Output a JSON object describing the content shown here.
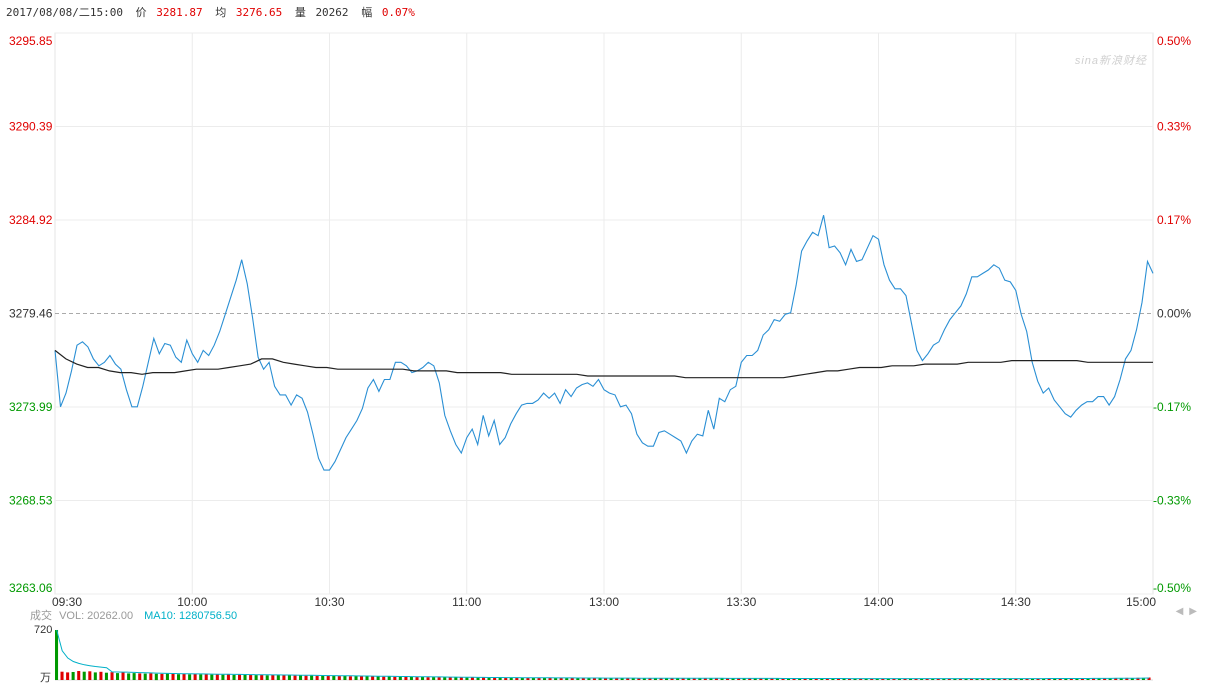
{
  "header": {
    "datetime": "2017/08/08/二15:00",
    "price_label": "价",
    "price": "3281.87",
    "avg_label": "均",
    "avg": "3276.65",
    "vol_label": "量",
    "vol": "20262",
    "chg_label": "幅",
    "chg": "0.07%"
  },
  "watermark": "sina新浪财经",
  "colors": {
    "up": "#e00000",
    "down": "#009900",
    "line": "#2a8fd4",
    "avg": "#222222",
    "ma": "#00b0c8"
  },
  "volume_panel": {
    "title": "成交",
    "vol_text": "VOL: 20262.00",
    "ma_text": "MA10: 1280756.50",
    "max_label": "720",
    "unit_label": "万"
  },
  "chart_data": {
    "type": "line",
    "title": "",
    "prev_close": 3279.46,
    "ylim": [
      3263.06,
      3295.85
    ],
    "y_ticks_left": [
      "3295.85",
      "3290.39",
      "3284.92",
      "3279.46",
      "3273.99",
      "3268.53",
      "3263.06"
    ],
    "y_ticks_right": [
      "0.50%",
      "0.33%",
      "0.17%",
      "0.00%",
      "-0.17%",
      "-0.33%",
      "-0.50%"
    ],
    "x_labels": [
      "09:30",
      "10:00",
      "10:30",
      "11:00",
      "13:00",
      "13:30",
      "14:00",
      "14:30",
      "15:00"
    ],
    "series": [
      {
        "type": "price",
        "values": [
          3277.3,
          3274.0,
          3274.8,
          3276.1,
          3277.6,
          3277.8,
          3277.5,
          3276.8,
          3276.4,
          3276.6,
          3277.0,
          3276.5,
          3276.2,
          3275.0,
          3274.0,
          3274.0,
          3275.2,
          3276.6,
          3278.0,
          3277.1,
          3277.7,
          3277.6,
          3276.9,
          3276.6,
          3277.9,
          3277.1,
          3276.6,
          3277.3,
          3277.0,
          3277.6,
          3278.4,
          3279.4,
          3280.4,
          3281.4,
          3282.6,
          3281.2,
          3279.2,
          3276.9,
          3276.2,
          3276.6,
          3275.2,
          3274.7,
          3274.7,
          3274.1,
          3274.7,
          3274.5,
          3273.7,
          3272.4,
          3271.0,
          3270.3,
          3270.3,
          3270.8,
          3271.5,
          3272.2,
          3272.7,
          3273.2,
          3273.9,
          3275.1,
          3275.6,
          3274.9,
          3275.6,
          3275.6,
          3276.6,
          3276.6,
          3276.4,
          3276.0,
          3276.1,
          3276.3,
          3276.6,
          3276.4,
          3275.4,
          3273.5,
          3272.6,
          3271.8,
          3271.3,
          3272.2,
          3272.7,
          3271.8,
          3273.5,
          3272.3,
          3273.2,
          3271.8,
          3272.2,
          3273.0,
          3273.6,
          3274.1,
          3274.2,
          3274.2,
          3274.4,
          3274.8,
          3274.5,
          3274.8,
          3274.2,
          3275.0,
          3274.6,
          3275.1,
          3275.3,
          3275.4,
          3275.2,
          3275.6,
          3275.0,
          3274.8,
          3274.7,
          3274.0,
          3274.1,
          3273.6,
          3272.4,
          3271.9,
          3271.7,
          3271.7,
          3272.5,
          3272.6,
          3272.4,
          3272.2,
          3272.0,
          3271.3,
          3272.0,
          3272.4,
          3272.3,
          3273.8,
          3272.7,
          3274.5,
          3274.3,
          3275.0,
          3275.2,
          3276.6,
          3277.0,
          3277.0,
          3277.3,
          3278.2,
          3278.5,
          3279.1,
          3279.0,
          3279.4,
          3279.5,
          3281.1,
          3283.1,
          3283.7,
          3284.2,
          3284.0,
          3285.2,
          3283.3,
          3283.4,
          3283.0,
          3282.3,
          3283.2,
          3282.5,
          3282.6,
          3283.3,
          3284.0,
          3283.8,
          3282.3,
          3281.4,
          3280.9,
          3280.9,
          3280.5,
          3278.9,
          3277.3,
          3276.7,
          3277.1,
          3277.6,
          3277.8,
          3278.5,
          3279.1,
          3279.5,
          3279.9,
          3280.6,
          3281.6,
          3281.6,
          3281.8,
          3282.0,
          3282.3,
          3282.1,
          3281.4,
          3281.3,
          3280.8,
          3279.4,
          3278.4,
          3276.6,
          3275.5,
          3274.8,
          3275.1,
          3274.4,
          3274.0,
          3273.6,
          3273.4,
          3273.8,
          3274.1,
          3274.3,
          3274.3,
          3274.6,
          3274.6,
          3274.1,
          3274.6,
          3275.6,
          3276.8,
          3277.3,
          3278.5,
          3280.1,
          3282.5,
          3281.8
        ]
      },
      {
        "type": "average",
        "values": [
          3277.3,
          3276.8,
          3276.5,
          3276.3,
          3276.3,
          3276.1,
          3276.0,
          3276.0,
          3275.9,
          3276.0,
          3276.0,
          3276.0,
          3276.1,
          3276.2,
          3276.2,
          3276.2,
          3276.3,
          3276.4,
          3276.5,
          3276.8,
          3276.8,
          3276.6,
          3276.5,
          3276.4,
          3276.3,
          3276.3,
          3276.2,
          3276.2,
          3276.2,
          3276.2,
          3276.2,
          3276.2,
          3276.2,
          3276.1,
          3276.1,
          3276.1,
          3276.1,
          3276.0,
          3276.0,
          3276.0,
          3276.0,
          3276.0,
          3275.9,
          3275.9,
          3275.9,
          3275.9,
          3275.9,
          3275.9,
          3275.9,
          3275.8,
          3275.8,
          3275.8,
          3275.8,
          3275.8,
          3275.8,
          3275.8,
          3275.8,
          3275.8,
          3275.7,
          3275.7,
          3275.7,
          3275.7,
          3275.7,
          3275.7,
          3275.7,
          3275.7,
          3275.7,
          3275.7,
          3275.8,
          3275.9,
          3276.0,
          3276.1,
          3276.1,
          3276.2,
          3276.3,
          3276.3,
          3276.3,
          3276.4,
          3276.4,
          3276.4,
          3276.5,
          3276.5,
          3276.5,
          3276.5,
          3276.6,
          3276.6,
          3276.6,
          3276.6,
          3276.7,
          3276.7,
          3276.7,
          3276.7,
          3276.7,
          3276.7,
          3276.7,
          3276.6,
          3276.6,
          3276.6,
          3276.6,
          3276.6,
          3276.6,
          3276.6
        ]
      }
    ],
    "volume_bars": [
      {
        "v": 720,
        "up": false
      },
      {
        "v": 120,
        "up": true
      },
      {
        "v": 110,
        "up": true
      },
      {
        "v": 115,
        "up": false
      },
      {
        "v": 130,
        "up": true
      },
      {
        "v": 120,
        "up": false
      },
      {
        "v": 125,
        "up": true
      },
      {
        "v": 110,
        "up": false
      },
      {
        "v": 118,
        "up": true
      },
      {
        "v": 105,
        "up": false
      },
      {
        "v": 112,
        "up": true
      },
      {
        "v": 100,
        "up": false
      },
      {
        "v": 108,
        "up": true
      },
      {
        "v": 95,
        "up": false
      },
      {
        "v": 100,
        "up": false
      },
      {
        "v": 95,
        "up": true
      },
      {
        "v": 92,
        "up": false
      },
      {
        "v": 96,
        "up": true
      },
      {
        "v": 90,
        "up": false
      },
      {
        "v": 88,
        "up": true
      },
      {
        "v": 92,
        "up": false
      },
      {
        "v": 86,
        "up": true
      },
      {
        "v": 84,
        "up": false
      },
      {
        "v": 88,
        "up": true
      },
      {
        "v": 82,
        "up": false
      },
      {
        "v": 86,
        "up": true
      },
      {
        "v": 80,
        "up": false
      },
      {
        "v": 84,
        "up": true
      },
      {
        "v": 78,
        "up": false
      },
      {
        "v": 82,
        "up": true
      },
      {
        "v": 76,
        "up": false
      },
      {
        "v": 80,
        "up": true
      },
      {
        "v": 74,
        "up": false
      },
      {
        "v": 78,
        "up": true
      },
      {
        "v": 72,
        "up": false
      },
      {
        "v": 76,
        "up": true
      },
      {
        "v": 70,
        "up": false
      },
      {
        "v": 74,
        "up": true
      },
      {
        "v": 68,
        "up": false
      },
      {
        "v": 72,
        "up": true
      },
      {
        "v": 70,
        "up": false
      },
      {
        "v": 66,
        "up": true
      },
      {
        "v": 68,
        "up": false
      },
      {
        "v": 64,
        "up": true
      },
      {
        "v": 66,
        "up": false
      },
      {
        "v": 62,
        "up": true
      },
      {
        "v": 64,
        "up": false
      },
      {
        "v": 60,
        "up": true
      },
      {
        "v": 62,
        "up": false
      },
      {
        "v": 58,
        "up": true
      },
      {
        "v": 60,
        "up": false
      },
      {
        "v": 56,
        "up": true
      },
      {
        "v": 58,
        "up": false
      },
      {
        "v": 54,
        "up": true
      },
      {
        "v": 56,
        "up": false
      },
      {
        "v": 52,
        "up": true
      },
      {
        "v": 54,
        "up": false
      },
      {
        "v": 50,
        "up": true
      },
      {
        "v": 52,
        "up": false
      },
      {
        "v": 48,
        "up": true
      },
      {
        "v": 50,
        "up": false
      },
      {
        "v": 46,
        "up": true
      },
      {
        "v": 48,
        "up": false
      },
      {
        "v": 44,
        "up": true
      },
      {
        "v": 46,
        "up": false
      },
      {
        "v": 42,
        "up": true
      },
      {
        "v": 44,
        "up": false
      },
      {
        "v": 40,
        "up": true
      },
      {
        "v": 42,
        "up": false
      },
      {
        "v": 40,
        "up": true
      },
      {
        "v": 38,
        "up": false
      },
      {
        "v": 40,
        "up": true
      },
      {
        "v": 36,
        "up": false
      },
      {
        "v": 38,
        "up": true
      },
      {
        "v": 35,
        "up": false
      },
      {
        "v": 37,
        "up": true
      },
      {
        "v": 34,
        "up": false
      },
      {
        "v": 36,
        "up": true
      },
      {
        "v": 33,
        "up": false
      },
      {
        "v": 35,
        "up": true
      },
      {
        "v": 32,
        "up": false
      },
      {
        "v": 34,
        "up": true
      },
      {
        "v": 31,
        "up": false
      },
      {
        "v": 33,
        "up": true
      },
      {
        "v": 30,
        "up": false
      },
      {
        "v": 32,
        "up": true
      },
      {
        "v": 30,
        "up": false
      },
      {
        "v": 31,
        "up": true
      },
      {
        "v": 29,
        "up": false
      },
      {
        "v": 30,
        "up": true
      },
      {
        "v": 28,
        "up": false
      },
      {
        "v": 30,
        "up": true
      },
      {
        "v": 28,
        "up": false
      },
      {
        "v": 29,
        "up": true
      },
      {
        "v": 27,
        "up": false
      },
      {
        "v": 29,
        "up": true
      },
      {
        "v": 27,
        "up": false
      },
      {
        "v": 28,
        "up": true
      },
      {
        "v": 26,
        "up": false
      },
      {
        "v": 28,
        "up": true
      },
      {
        "v": 26,
        "up": false
      },
      {
        "v": 27,
        "up": true
      },
      {
        "v": 25,
        "up": false
      },
      {
        "v": 27,
        "up": true
      },
      {
        "v": 25,
        "up": false
      },
      {
        "v": 26,
        "up": true
      },
      {
        "v": 25,
        "up": false
      },
      {
        "v": 26,
        "up": true
      },
      {
        "v": 24,
        "up": false
      },
      {
        "v": 26,
        "up": true
      },
      {
        "v": 24,
        "up": false
      },
      {
        "v": 25,
        "up": true
      },
      {
        "v": 24,
        "up": false
      },
      {
        "v": 25,
        "up": true
      },
      {
        "v": 23,
        "up": false
      },
      {
        "v": 25,
        "up": true
      },
      {
        "v": 23,
        "up": false
      },
      {
        "v": 24,
        "up": true
      },
      {
        "v": 23,
        "up": false
      },
      {
        "v": 24,
        "up": true
      },
      {
        "v": 22,
        "up": false
      },
      {
        "v": 24,
        "up": true
      },
      {
        "v": 22,
        "up": false
      },
      {
        "v": 23,
        "up": true
      },
      {
        "v": 22,
        "up": false
      },
      {
        "v": 23,
        "up": true
      },
      {
        "v": 22,
        "up": false
      },
      {
        "v": 23,
        "up": true
      },
      {
        "v": 21,
        "up": false
      },
      {
        "v": 23,
        "up": true
      },
      {
        "v": 21,
        "up": false
      },
      {
        "v": 22,
        "up": true
      },
      {
        "v": 21,
        "up": false
      },
      {
        "v": 22,
        "up": true
      },
      {
        "v": 21,
        "up": false
      },
      {
        "v": 22,
        "up": true
      },
      {
        "v": 20,
        "up": false
      },
      {
        "v": 22,
        "up": true
      },
      {
        "v": 20,
        "up": false
      },
      {
        "v": 21,
        "up": true
      },
      {
        "v": 20,
        "up": false
      },
      {
        "v": 21,
        "up": true
      },
      {
        "v": 20,
        "up": false
      },
      {
        "v": 21,
        "up": true
      },
      {
        "v": 20,
        "up": false
      },
      {
        "v": 21,
        "up": true
      },
      {
        "v": 20,
        "up": false
      },
      {
        "v": 21,
        "up": true
      },
      {
        "v": 20,
        "up": false
      },
      {
        "v": 21,
        "up": true
      },
      {
        "v": 20,
        "up": false
      },
      {
        "v": 21,
        "up": true
      },
      {
        "v": 20,
        "up": false
      },
      {
        "v": 21,
        "up": true
      },
      {
        "v": 20,
        "up": false
      },
      {
        "v": 21,
        "up": true
      },
      {
        "v": 20,
        "up": false
      },
      {
        "v": 21,
        "up": true
      },
      {
        "v": 20,
        "up": false
      },
      {
        "v": 21,
        "up": true
      },
      {
        "v": 20,
        "up": false
      },
      {
        "v": 21,
        "up": true
      },
      {
        "v": 20,
        "up": false
      },
      {
        "v": 21,
        "up": true
      },
      {
        "v": 20,
        "up": false
      },
      {
        "v": 21,
        "up": true
      },
      {
        "v": 20,
        "up": false
      },
      {
        "v": 21,
        "up": true
      },
      {
        "v": 20,
        "up": false
      },
      {
        "v": 21,
        "up": true
      },
      {
        "v": 20,
        "up": false
      },
      {
        "v": 21,
        "up": true
      },
      {
        "v": 20,
        "up": false
      },
      {
        "v": 21,
        "up": true
      },
      {
        "v": 20,
        "up": false
      },
      {
        "v": 22,
        "up": true
      },
      {
        "v": 20,
        "up": false
      },
      {
        "v": 22,
        "up": true
      },
      {
        "v": 21,
        "up": false
      },
      {
        "v": 22,
        "up": true
      },
      {
        "v": 21,
        "up": false
      },
      {
        "v": 23,
        "up": true
      },
      {
        "v": 21,
        "up": false
      },
      {
        "v": 23,
        "up": true
      },
      {
        "v": 22,
        "up": false
      },
      {
        "v": 24,
        "up": true
      },
      {
        "v": 22,
        "up": false
      },
      {
        "v": 25,
        "up": true
      },
      {
        "v": 23,
        "up": false
      },
      {
        "v": 26,
        "up": true
      },
      {
        "v": 24,
        "up": false
      },
      {
        "v": 28,
        "up": true
      },
      {
        "v": 26,
        "up": false
      },
      {
        "v": 30,
        "up": true
      },
      {
        "v": 28,
        "up": false
      },
      {
        "v": 32,
        "up": true
      },
      {
        "v": 30,
        "up": false
      },
      {
        "v": 36,
        "up": true
      }
    ]
  }
}
